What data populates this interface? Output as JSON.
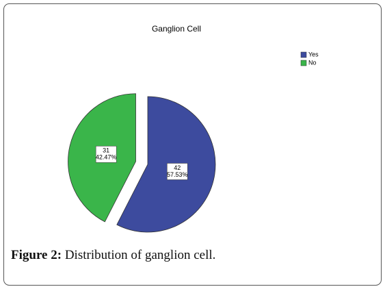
{
  "chart_data": {
    "type": "pie",
    "title": "Ganglion Cell",
    "categories": [
      "Yes",
      "No"
    ],
    "values": [
      42,
      31
    ],
    "percent_labels": [
      "57.53%",
      "42.47%"
    ],
    "colors": [
      "#3d4b9e",
      "#3ab54a"
    ],
    "explode": [
      false,
      true
    ],
    "legend": "upper right"
  },
  "caption": {
    "label": "Figure 2:",
    "text": "Distribution of ganglion cell."
  }
}
